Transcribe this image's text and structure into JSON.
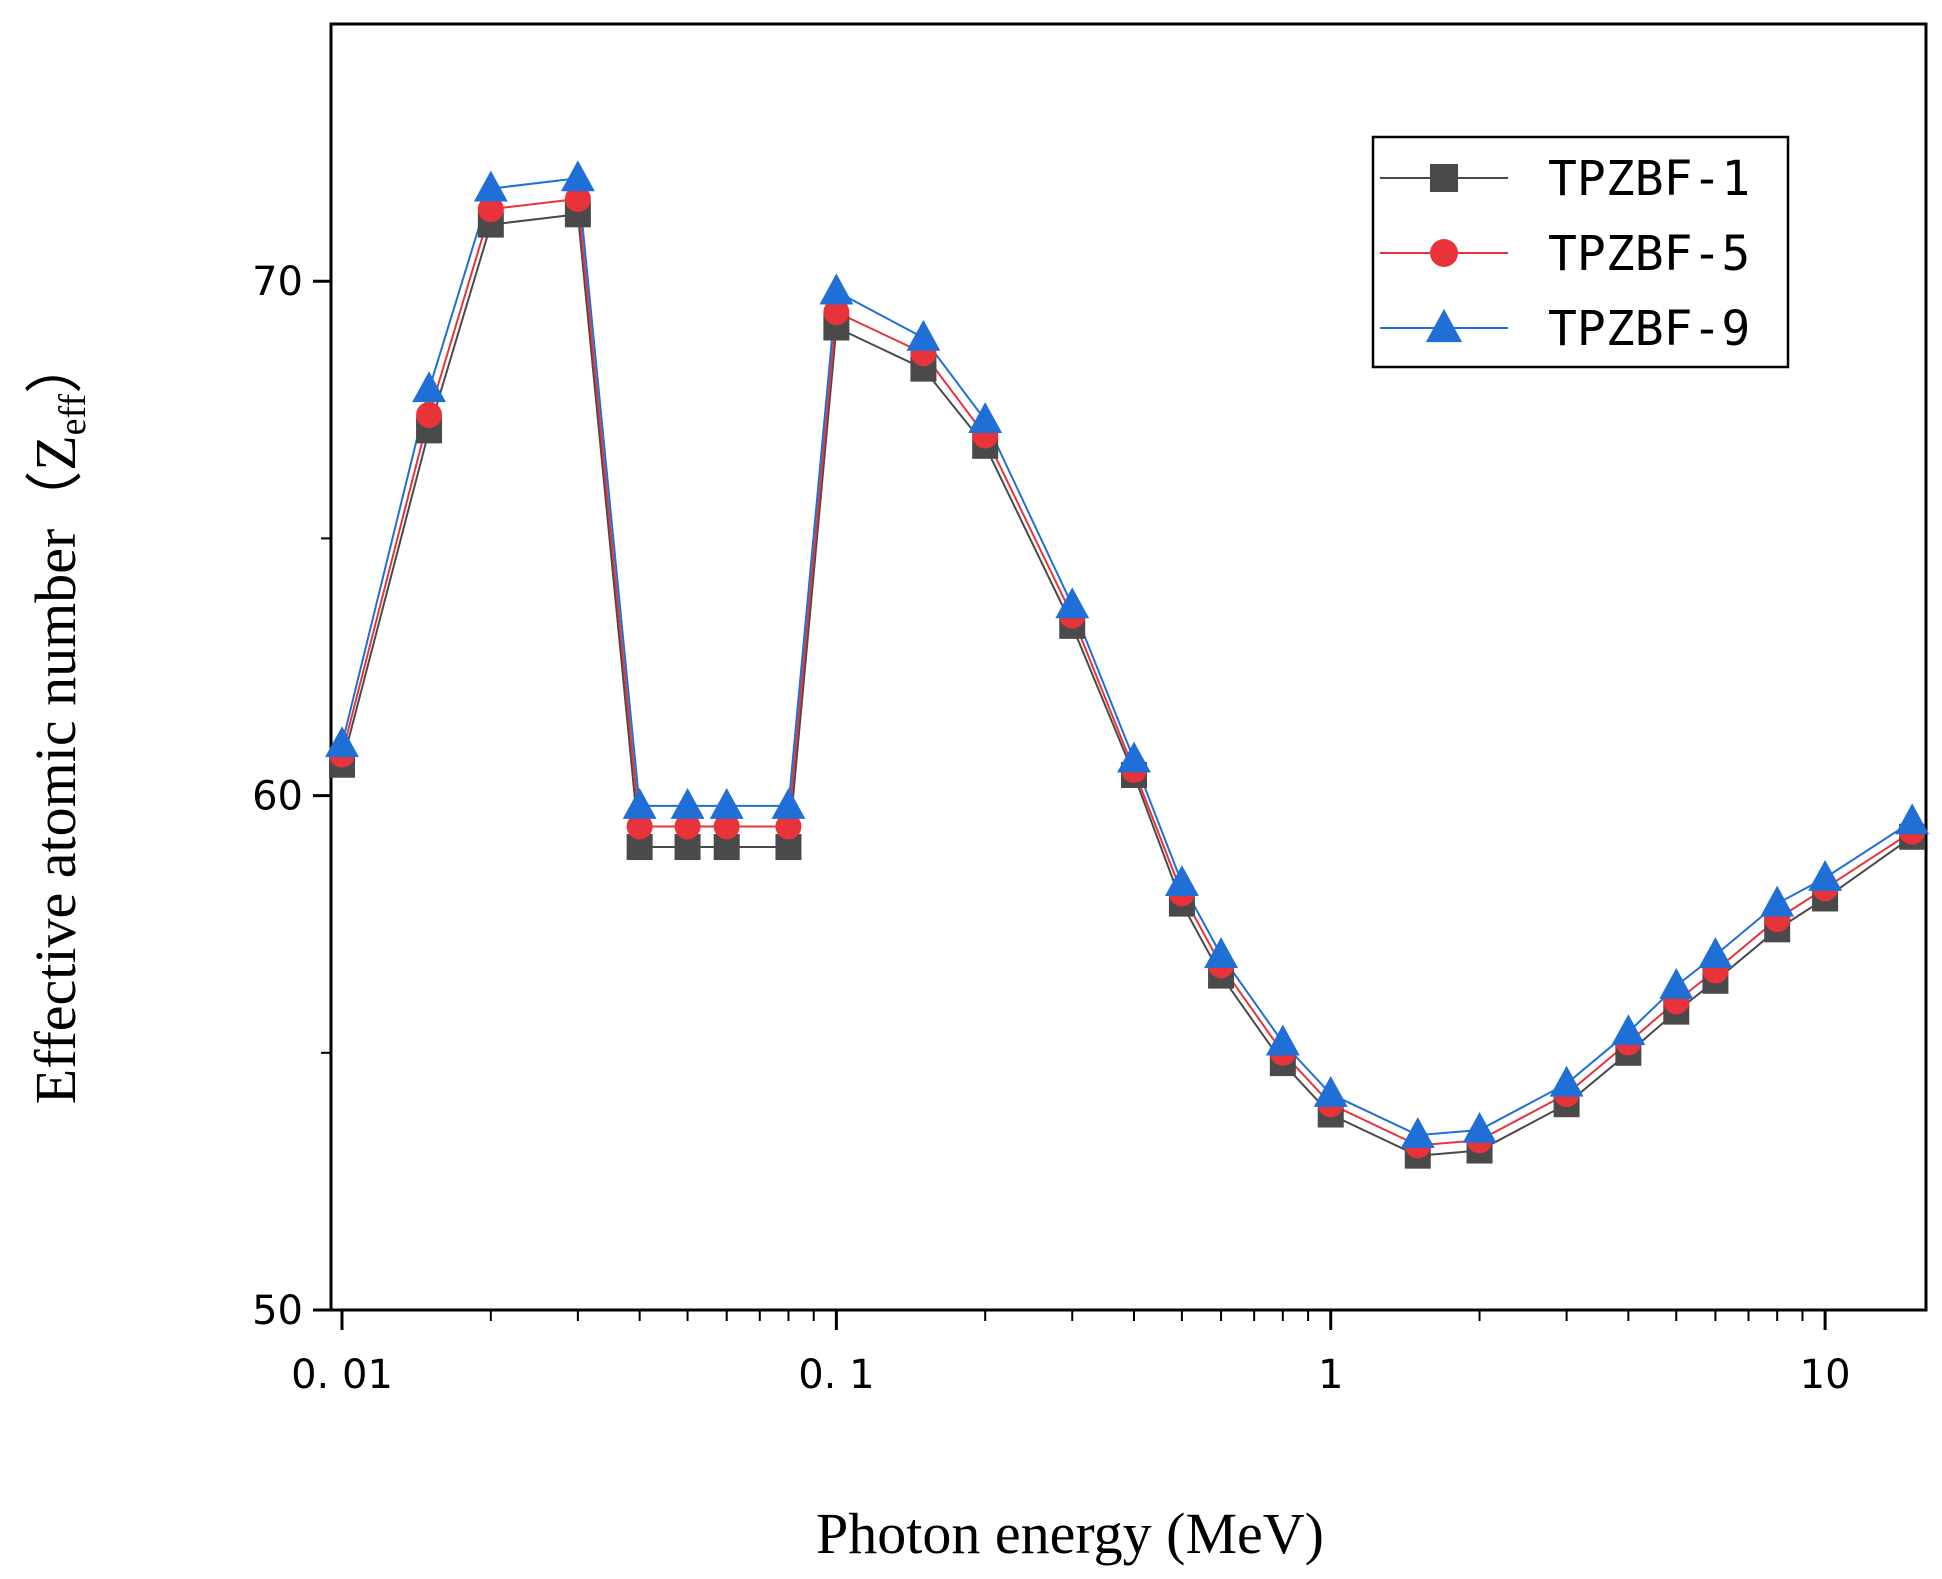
{
  "chart_data": {
    "type": "line",
    "title": "",
    "xlabel": "Photon energy (MeV)",
    "ylabel": "Effective atomic number（Z",
    "ylabel_sub": "eff",
    "ylabel_close": "）",
    "xscale": "log",
    "xlim": [
      0.0095,
      16
    ],
    "ylim": [
      50,
      75
    ],
    "x_ticks": [
      {
        "value": 0.01,
        "label": "0. 01"
      },
      {
        "value": 0.1,
        "label": "0. 1"
      },
      {
        "value": 1,
        "label": "1"
      },
      {
        "value": 10,
        "label": "10"
      }
    ],
    "y_ticks": [
      {
        "value": 50,
        "label": "50"
      },
      {
        "value": 60,
        "label": "60"
      },
      {
        "value": 70,
        "label": "70"
      }
    ],
    "y_minor_ticks": [
      55,
      65
    ],
    "grid": false,
    "legend_position": "top-right",
    "x": [
      0.01,
      0.015,
      0.02,
      0.03,
      0.04,
      0.05,
      0.06,
      0.08,
      0.1,
      0.15,
      0.2,
      0.3,
      0.4,
      0.5,
      0.6,
      0.8,
      1,
      1.5,
      2,
      3,
      4,
      5,
      6,
      8,
      10,
      15
    ],
    "series": [
      {
        "name": "TPZBF-1",
        "color": "#4a4a4a",
        "marker": "square",
        "values": [
          60.6,
          67.1,
          71.1,
          71.3,
          59.0,
          59.0,
          59.0,
          59.0,
          69.1,
          68.3,
          66.8,
          63.3,
          60.4,
          57.9,
          56.5,
          54.8,
          53.8,
          53.0,
          53.1,
          54.0,
          55.0,
          55.8,
          56.4,
          57.4,
          58.0,
          59.2
        ]
      },
      {
        "name": "TPZBF-5",
        "color": "#e8333a",
        "marker": "circle",
        "values": [
          60.8,
          67.4,
          71.4,
          71.6,
          59.4,
          59.4,
          59.4,
          59.4,
          69.4,
          68.6,
          67.0,
          63.5,
          60.5,
          58.1,
          56.7,
          55.0,
          54.0,
          53.2,
          53.3,
          54.2,
          55.2,
          56.0,
          56.6,
          57.6,
          58.2,
          59.3
        ]
      },
      {
        "name": "TPZBF-9",
        "color": "#1f6fd6",
        "marker": "triangle",
        "values": [
          61.0,
          67.9,
          71.8,
          72.0,
          59.8,
          59.8,
          59.8,
          59.8,
          69.8,
          68.9,
          67.3,
          63.7,
          60.7,
          58.3,
          56.9,
          55.2,
          54.2,
          53.4,
          53.5,
          54.4,
          55.4,
          56.3,
          56.9,
          57.9,
          58.4,
          59.5
        ]
      }
    ]
  }
}
